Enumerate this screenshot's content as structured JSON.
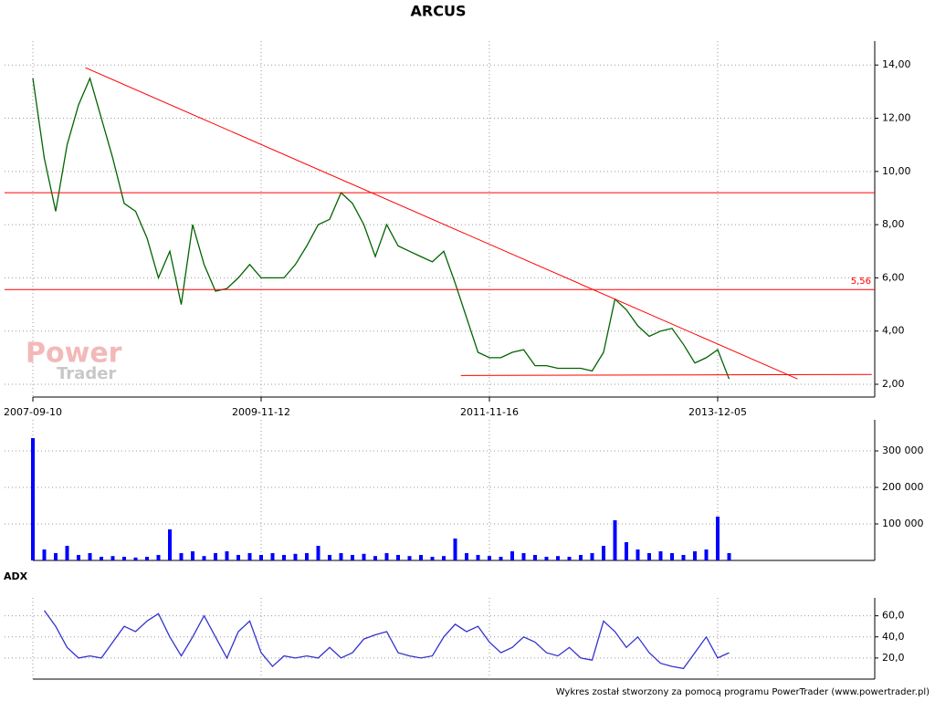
{
  "chart_data": [
    {
      "type": "line",
      "title": "ARCUS",
      "color": "#006400",
      "categories": [
        "2007-09-10",
        null,
        null,
        null,
        null,
        null,
        null,
        null,
        null,
        null,
        null,
        null,
        null,
        null,
        null,
        null,
        null,
        null,
        null,
        null,
        "2009-11-12",
        null,
        null,
        null,
        null,
        null,
        null,
        null,
        null,
        null,
        null,
        null,
        null,
        null,
        null,
        null,
        null,
        null,
        null,
        null,
        "2011-11-16",
        null,
        null,
        null,
        null,
        null,
        null,
        null,
        null,
        null,
        null,
        null,
        null,
        null,
        null,
        null,
        null,
        null,
        null,
        null,
        "2013-12-05",
        null
      ],
      "values": [
        13.5,
        10.5,
        8.5,
        11,
        12.5,
        13.5,
        12,
        10.5,
        8.8,
        8.5,
        7.5,
        6,
        7,
        5,
        8,
        6.5,
        5.5,
        5.6,
        6,
        6.5,
        6,
        6,
        6,
        6.5,
        7.2,
        8,
        8.2,
        9.2,
        8.8,
        8,
        6.8,
        8,
        7.2,
        7,
        6.8,
        6.6,
        7,
        5.8,
        4.5,
        3.2,
        3,
        3,
        3.2,
        3.3,
        2.7,
        2.7,
        2.6,
        2.6,
        2.6,
        2.5,
        3.2,
        5.2,
        4.8,
        4.2,
        3.8,
        4,
        4.1,
        3.5,
        2.8,
        3,
        3.3,
        2.2
      ],
      "ylim": [
        1.52,
        14.9
      ],
      "yticks": [
        {
          "value": 2,
          "label": "2,00"
        },
        {
          "value": 4,
          "label": "4,00"
        },
        {
          "value": 6,
          "label": "6,00"
        },
        {
          "value": 8,
          "label": "8,00"
        },
        {
          "value": 10,
          "label": "10,00"
        },
        {
          "value": 12,
          "label": "12,00"
        },
        {
          "value": 14,
          "label": "14,00"
        }
      ],
      "grid": true,
      "line_color": "#ff0000",
      "hlines": [
        {
          "value": 9.2
        },
        {
          "value": 5.56,
          "label": "5,56"
        }
      ],
      "trendlines": [
        {
          "x": [
            4.6,
            67
          ],
          "y": [
            13.9,
            2.2
          ]
        },
        {
          "x": [
            37.5,
            73.5
          ],
          "y": [
            2.33,
            2.37
          ]
        }
      ],
      "watermark": [
        "Power",
        "Trader"
      ]
    },
    {
      "type": "bar",
      "color": "#0000ff",
      "values": [
        335000,
        30000,
        20000,
        40000,
        15000,
        20000,
        10000,
        12000,
        10000,
        8000,
        10000,
        15000,
        85000,
        20000,
        25000,
        12000,
        20000,
        25000,
        15000,
        20000,
        15000,
        20000,
        15000,
        18000,
        20000,
        40000,
        15000,
        20000,
        15000,
        18000,
        12000,
        20000,
        15000,
        12000,
        15000,
        10000,
        12000,
        60000,
        20000,
        15000,
        12000,
        10000,
        25000,
        20000,
        15000,
        10000,
        12000,
        10000,
        15000,
        20000,
        40000,
        110000,
        50000,
        30000,
        20000,
        25000,
        20000,
        15000,
        25000,
        30000,
        120000,
        20000
      ],
      "ylim": [
        0,
        385000
      ],
      "yticks": [
        {
          "value": 100000,
          "label": "100 000"
        },
        {
          "value": 200000,
          "label": "200 000"
        },
        {
          "value": 300000,
          "label": "300 000"
        }
      ],
      "grid": true
    },
    {
      "type": "line",
      "title": "ADX",
      "color": "#3333cc",
      "values": [
        null,
        65,
        50,
        30,
        20,
        22,
        20,
        35,
        50,
        45,
        55,
        62,
        40,
        22,
        40,
        60,
        40,
        20,
        45,
        55,
        25,
        12,
        22,
        20,
        22,
        20,
        30,
        20,
        25,
        38,
        42,
        45,
        25,
        22,
        20,
        22,
        40,
        52,
        45,
        50,
        35,
        25,
        30,
        40,
        35,
        25,
        22,
        30,
        20,
        18,
        55,
        45,
        30,
        40,
        25,
        15,
        12,
        10,
        25,
        40,
        20,
        25
      ],
      "ylim": [
        0,
        77
      ],
      "yticks": [
        {
          "value": 20,
          "label": "20,0"
        },
        {
          "value": 40,
          "label": "40,0"
        },
        {
          "value": 60,
          "label": "60,0"
        }
      ],
      "grid": true
    }
  ],
  "footer": "Wykres został stworzony za pomocą programu PowerTrader (www.powertrader.pl)"
}
